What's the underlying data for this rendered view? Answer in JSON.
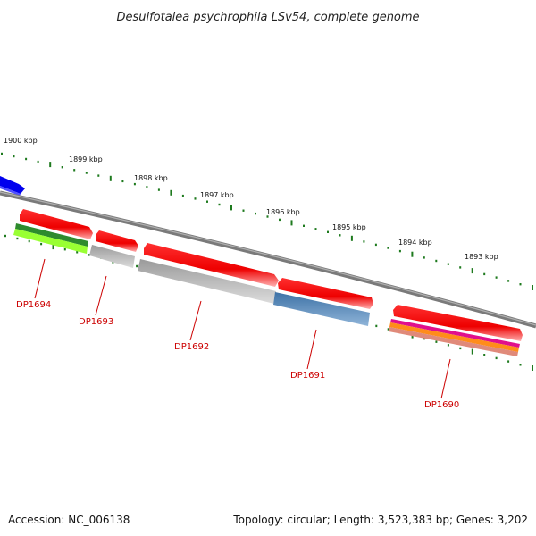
{
  "title": "Desulfotalea psychrophila LSv54, complete genome",
  "accession": "Accession: NC_006138",
  "topology": "Topology: circular; Length: 3,523,383 bp; Genes: 3,202",
  "kbp_ticks": [
    "1900 kbp",
    "1899 kbp",
    "1898 kbp",
    "1897 kbp",
    "1896 kbp",
    "1895 kbp",
    "1894 kbp",
    "1893 kbp"
  ],
  "genes": [
    "DP1694",
    "DP1693",
    "DP1692",
    "DP1691",
    "DP1690"
  ],
  "colors": {
    "backbone": "#7a7a7a",
    "tick_green": "#1e7a1e",
    "gene_red": "#ff0000",
    "label_red": "#cc0000",
    "gene_blue": "#0000ee",
    "track_grey": "#b4b4b4",
    "track_steelblue": "#4a7fb0",
    "track_green_dark": "#2e8b2e",
    "track_green_light": "#99ff33",
    "track_magenta": "#e0108c",
    "track_orange": "#ff8c1a",
    "track_salmon": "#e08a7a"
  }
}
